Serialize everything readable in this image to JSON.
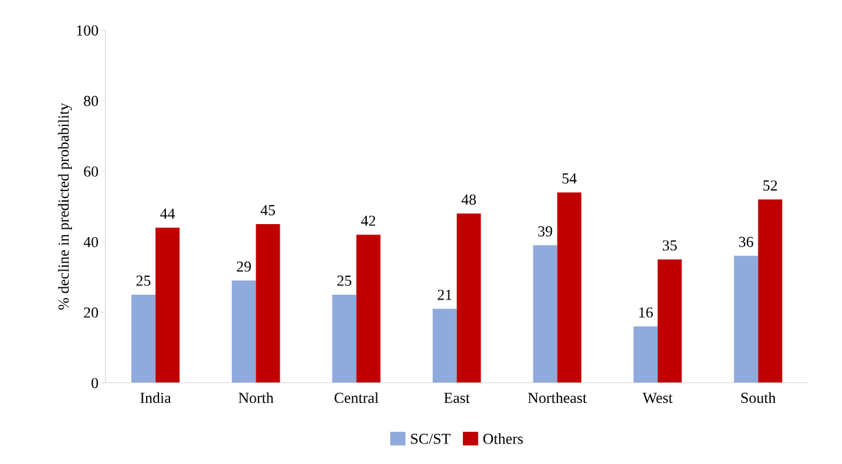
{
  "chart_data": {
    "type": "bar",
    "ylabel": "% decline in predicted probability",
    "categories": [
      "India",
      "North",
      "Central",
      "East",
      "Northeast",
      "West",
      "South"
    ],
    "series": [
      {
        "name": "SC/ST",
        "color": "#8faadc",
        "values": [
          25,
          29,
          25,
          21,
          39,
          16,
          36
        ]
      },
      {
        "name": "Others",
        "color": "#c00000",
        "values": [
          44,
          45,
          42,
          48,
          54,
          35,
          52
        ]
      }
    ],
    "ylim": [
      0,
      100
    ],
    "yticks": [
      0,
      20,
      40,
      60,
      80,
      100
    ],
    "grid": false,
    "legend": "bottom",
    "data_labels": true
  }
}
